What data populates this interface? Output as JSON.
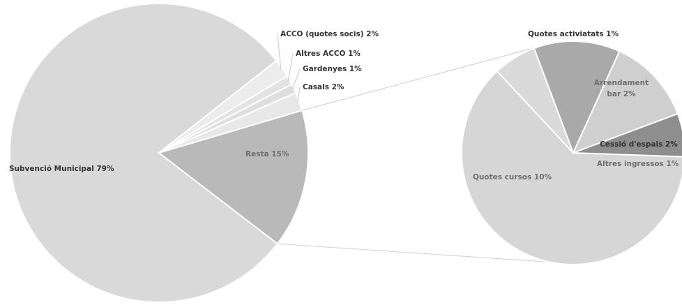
{
  "chart_data": [
    {
      "type": "pie",
      "slices": [
        {
          "label": "Subvenció Municipal 79%",
          "value": 79,
          "color": "#d9d9d9"
        },
        {
          "label": "ACCO (quotes socis) 2%",
          "value": 2,
          "color": "#ececec"
        },
        {
          "label": "Altres ACCO 1%",
          "value": 1,
          "color": "#e3e3e3"
        },
        {
          "label": "Gardenyes 1%",
          "value": 1,
          "color": "#dedede"
        },
        {
          "label": "Casals 2%",
          "value": 2,
          "color": "#e8e8e8"
        },
        {
          "label": "Resta 15%",
          "value": 15,
          "color": "#b9b9b9"
        }
      ]
    },
    {
      "type": "pie",
      "slices": [
        {
          "label": "Quotes cursos 10%",
          "value": 10,
          "color": "#d6d6d6"
        },
        {
          "label": "Quotes activiatats 1%",
          "value": 1,
          "color": "#dadada"
        },
        {
          "label": "Arrendament bar 2%",
          "value": 2,
          "color": "#a9a9a9"
        },
        {
          "label": "Cessió d'espais 2%",
          "value": 2,
          "color": "#cfcfcf"
        },
        {
          "label": "Altres ingressos 1%",
          "value": 1,
          "color": "#8e8e8e"
        }
      ]
    }
  ]
}
